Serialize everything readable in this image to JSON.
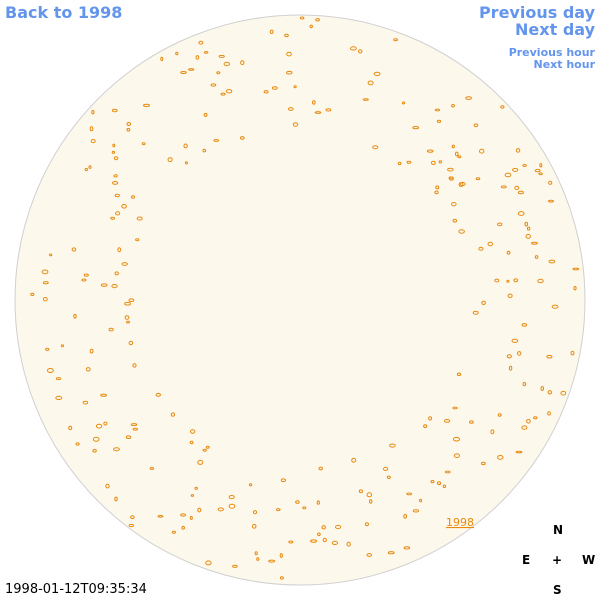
{
  "nav": {
    "back": "Back to 1998",
    "previous_day": "Previous day",
    "next_day": "Next day",
    "previous_hour": "Previous hour",
    "next_hour": "Next hour"
  },
  "timestamp": "1998-01-12T09:35:34",
  "disk_label": "1998",
  "compass": {
    "north": "N",
    "east": "E",
    "center": "+",
    "west": "W",
    "south": "S"
  }
}
